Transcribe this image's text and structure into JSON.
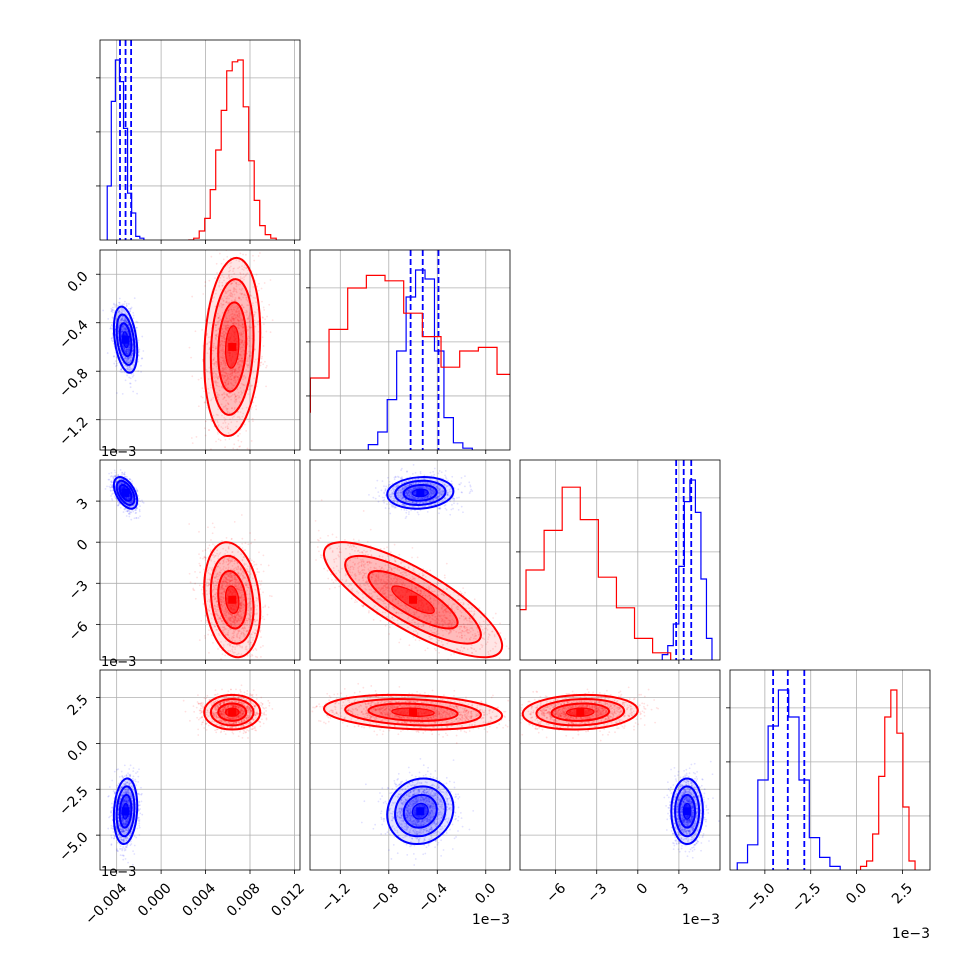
{
  "chart_data": {
    "type": "corner",
    "grid": true,
    "legend": "none",
    "colors": {
      "blue": "#0000ff",
      "red": "#ff0000"
    },
    "parameters": [
      {
        "range": [
          -0.0055,
          0.0125
        ],
        "ticks": [
          -0.004,
          0.0,
          0.004,
          0.008,
          0.012
        ],
        "tick_labels": [
          "−0.004",
          "0.000",
          "0.004",
          "0.008",
          "0.012"
        ],
        "offset_label": ""
      },
      {
        "range": [
          -1.45,
          0.2
        ],
        "ticks": [
          -1.2,
          -0.8,
          -0.4,
          0.0
        ],
        "tick_labels": [
          "−1.2",
          "−0.8",
          "−0.4",
          "0.0"
        ],
        "offset_label": "1e−3"
      },
      {
        "range": [
          -8.6,
          6.0
        ],
        "ticks": [
          -6,
          -3,
          0,
          3
        ],
        "tick_labels": [
          "−6",
          "−3",
          "0",
          "3"
        ],
        "offset_label": "1e−3"
      },
      {
        "range": [
          -6.9,
          4.0
        ],
        "ticks": [
          -5.0,
          -2.5,
          0.0,
          2.5
        ],
        "tick_labels": [
          "−5.0",
          "−2.5",
          "0.0",
          "2.5"
        ],
        "offset_label": "1e−3"
      }
    ],
    "diag_yticks": 3,
    "series": [
      {
        "color": "#0000ff",
        "mean": [
          -0.0032,
          -0.54,
          3.6,
          -3.7
        ],
        "std": [
          0.0005,
          0.13,
          0.55,
          0.85
        ],
        "quantiles": [
          [
            -0.0037,
            -0.0032,
            -0.0027
          ],
          [
            -0.62,
            -0.52,
            -0.39
          ],
          [
            2.8,
            3.35,
            3.9
          ],
          [
            -4.55,
            -3.75,
            -2.85
          ]
        ],
        "corr": {
          "0-1": -0.35,
          "0-2": -0.5,
          "0-3": 0.15,
          "1-2": 0.1,
          "1-3": 0.1,
          "2-3": 0.0
        },
        "hist": [
          [
            0.3,
            0.77,
            1.0,
            0.88,
            0.62,
            0.26,
            0.15,
            0.02,
            0.01
          ],
          [
            0.03,
            0.1,
            0.28,
            0.55,
            0.85,
            1.0,
            0.95,
            0.55,
            0.18,
            0.04,
            0.01
          ],
          [
            0.03,
            0.08,
            0.2,
            0.52,
            0.88,
            1.0,
            0.82,
            0.45,
            0.12
          ],
          [
            0.04,
            0.14,
            0.5,
            0.8,
            1.0,
            0.85,
            0.5,
            0.18,
            0.07,
            0.02
          ]
        ]
      },
      {
        "color": "#ff0000",
        "mean": [
          0.0064,
          -0.6,
          -4.2,
          1.7
        ],
        "std": [
          0.0012,
          0.35,
          2.0,
          0.45
        ],
        "quantiles": null,
        "corr": {
          "0-1": 0.15,
          "0-2": -0.2,
          "0-3": 0.0,
          "1-2": -0.8,
          "1-3": -0.2,
          "2-3": 0.1
        },
        "hist": [
          [
            0.0,
            0.01,
            0.05,
            0.12,
            0.28,
            0.5,
            0.72,
            0.94,
            0.99,
            1.0,
            0.74,
            0.44,
            0.22,
            0.08,
            0.03,
            0.01
          ],
          [
            0.13,
            0.21,
            0.4,
            0.67,
            0.9,
            0.97,
            0.94,
            0.76,
            0.63,
            0.46,
            0.55,
            0.57,
            0.42,
            0.5,
            0.12
          ],
          [
            0.06,
            0.28,
            0.5,
            0.72,
            0.96,
            0.78,
            0.46,
            0.29,
            0.12,
            0.04
          ],
          [
            0.02,
            0.05,
            0.2,
            0.52,
            0.85,
            1.0,
            0.76,
            0.35,
            0.05
          ]
        ]
      }
    ]
  }
}
